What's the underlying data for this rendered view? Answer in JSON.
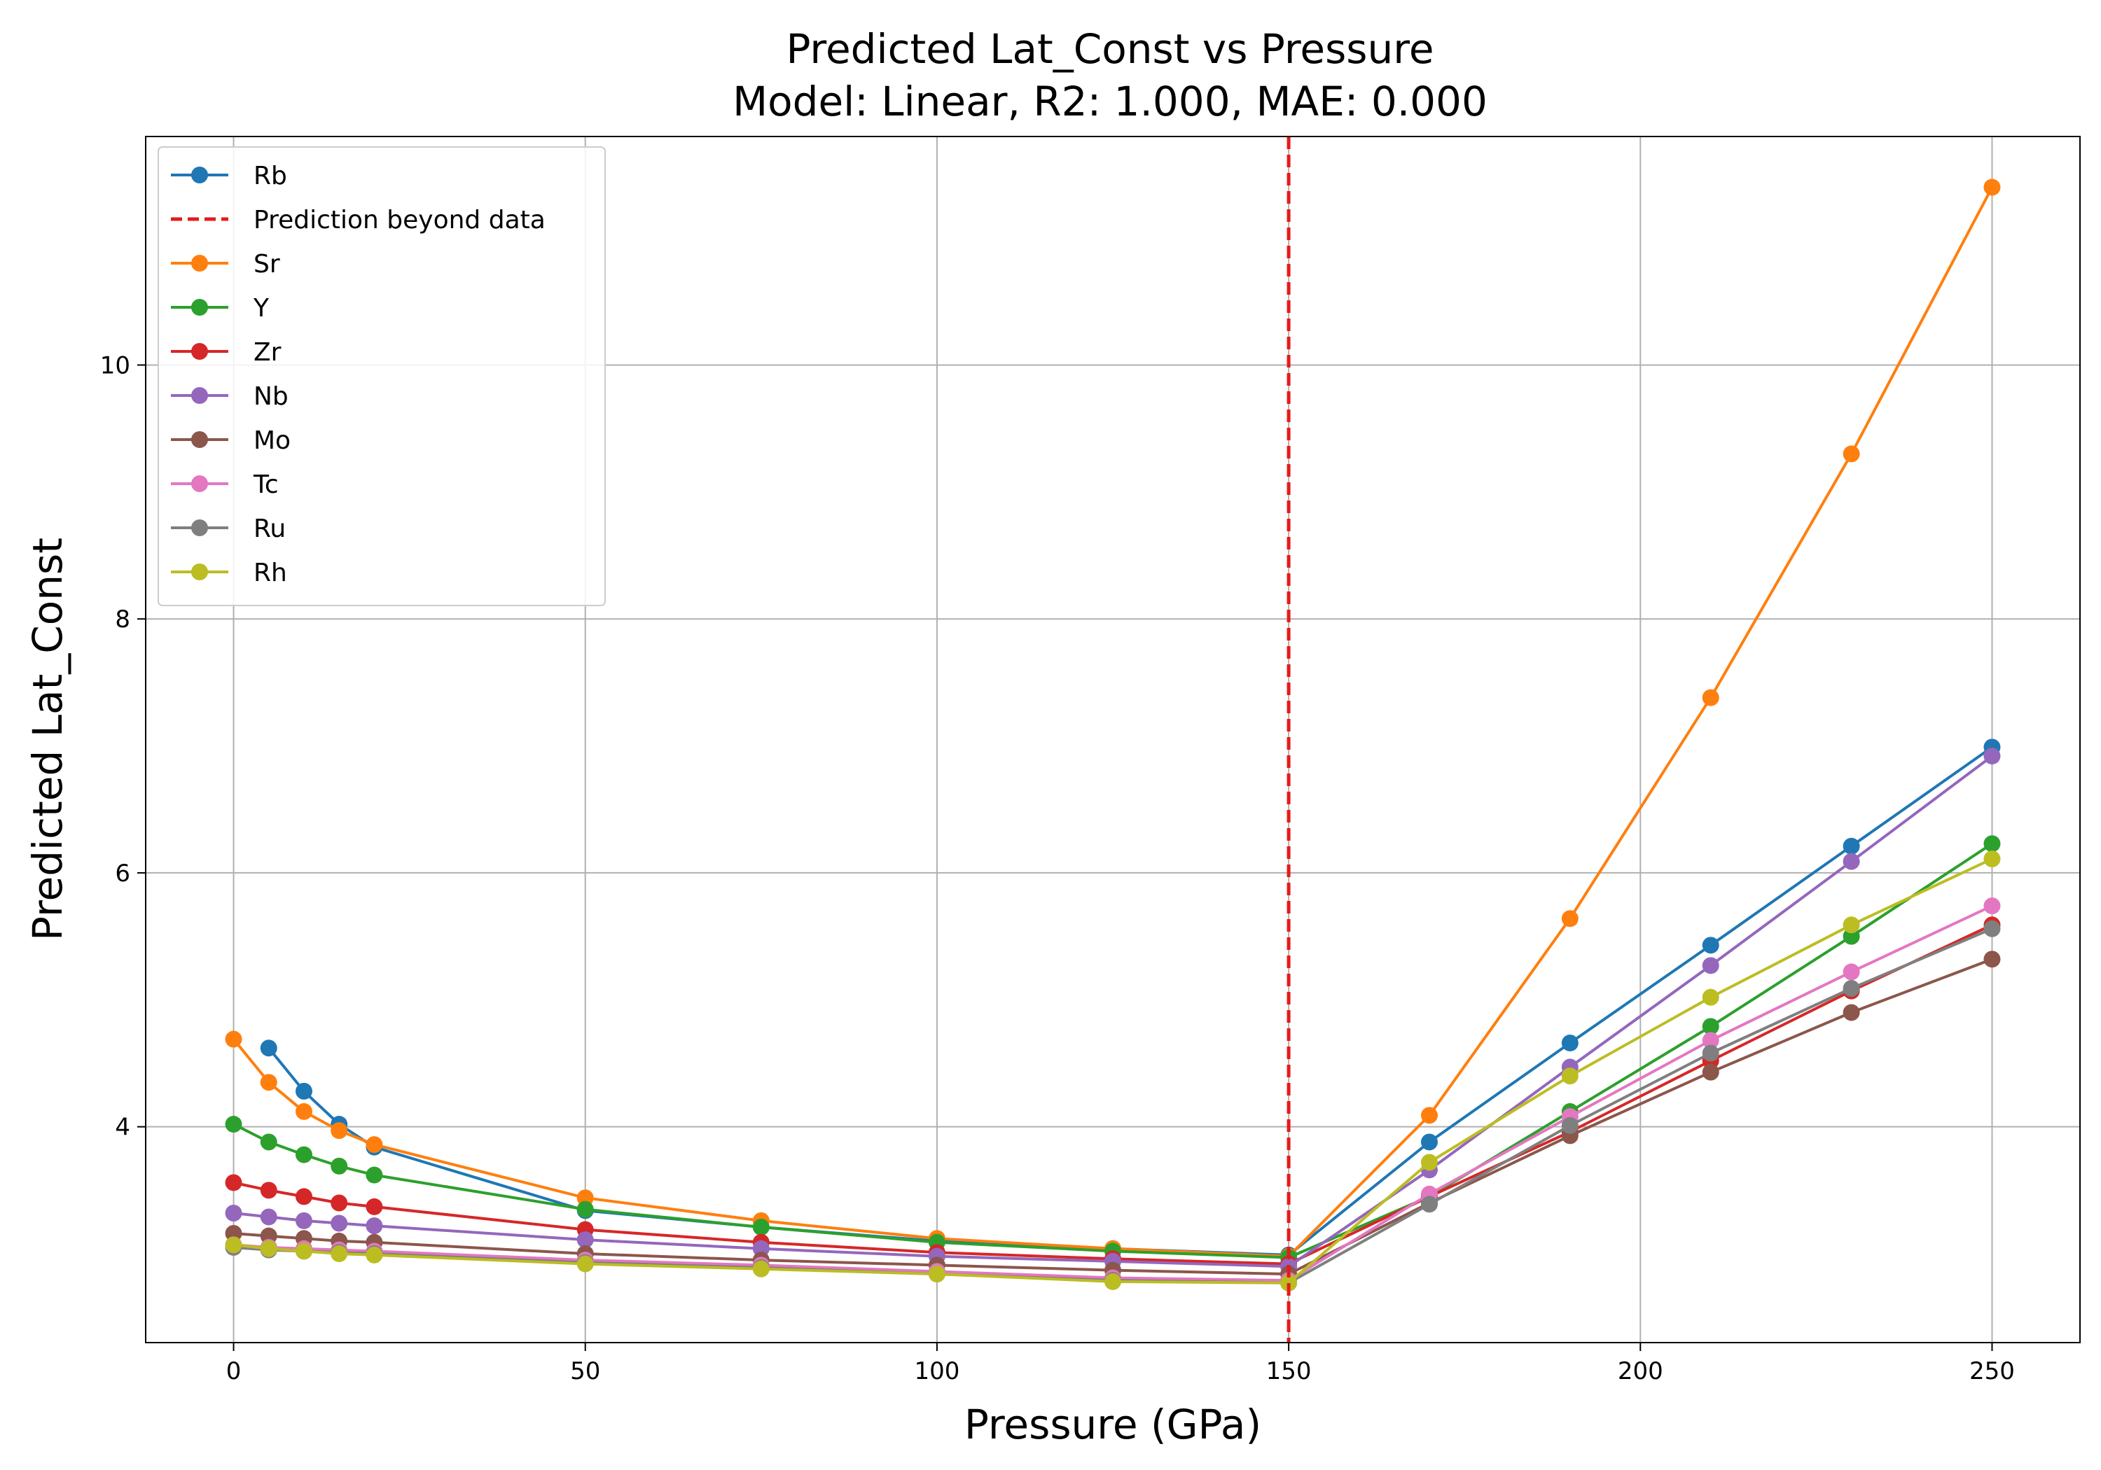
{
  "chart_data": {
    "type": "line",
    "title": "Predicted Lat_Const vs Pressure",
    "subtitle": "Model: Linear, R2: 1.000, MAE: 0.000",
    "xlabel": "Pressure (GPa)",
    "ylabel": "Predicted Lat_Const",
    "xlim": [
      -12.5,
      262.5
    ],
    "ylim": [
      2.3,
      11.8
    ],
    "xticks": [
      0,
      50,
      100,
      150,
      200,
      250
    ],
    "yticks": [
      4,
      6,
      8,
      10
    ],
    "grid": true,
    "legend_position": "top-left",
    "vline": {
      "x": 150,
      "name": "Prediction beyond data",
      "color": "#e41a1c",
      "style": "dashed"
    },
    "legend_order": [
      "Rb",
      "Prediction beyond data",
      "Sr",
      "Y",
      "Zr",
      "Nb",
      "Mo",
      "Tc",
      "Ru",
      "Rh"
    ],
    "series": [
      {
        "name": "Rb",
        "color": "#1f77b4",
        "x": [
          5,
          10,
          15,
          20,
          50,
          75,
          100,
          125,
          150,
          170,
          190,
          210,
          230,
          250
        ],
        "y": [
          4.62,
          4.28,
          4.02,
          3.84,
          3.34,
          3.21,
          3.1,
          3.04,
          2.99,
          3.88,
          4.66,
          5.43,
          6.21,
          6.99
        ]
      },
      {
        "name": "Sr",
        "color": "#ff7f0e",
        "x": [
          0,
          5,
          10,
          15,
          20,
          50,
          75,
          100,
          125,
          150,
          170,
          190,
          210,
          230,
          250
        ],
        "y": [
          4.69,
          4.35,
          4.12,
          3.97,
          3.86,
          3.44,
          3.26,
          3.12,
          3.04,
          2.98,
          4.09,
          5.64,
          7.38,
          9.3,
          11.4
        ]
      },
      {
        "name": "Y",
        "color": "#2ca02c",
        "x": [
          0,
          5,
          10,
          15,
          20,
          50,
          75,
          100,
          125,
          150,
          170,
          190,
          210,
          230,
          250
        ],
        "y": [
          4.02,
          3.88,
          3.78,
          3.69,
          3.62,
          3.35,
          3.21,
          3.09,
          3.02,
          2.97,
          3.45,
          4.12,
          4.79,
          5.5,
          6.23
        ]
      },
      {
        "name": "Zr",
        "color": "#d62728",
        "x": [
          0,
          5,
          10,
          15,
          20,
          50,
          75,
          100,
          125,
          150,
          170,
          190,
          210,
          230,
          250
        ],
        "y": [
          3.56,
          3.5,
          3.45,
          3.4,
          3.37,
          3.19,
          3.09,
          3.01,
          2.96,
          2.92,
          3.45,
          3.96,
          4.52,
          5.07,
          5.59
        ]
      },
      {
        "name": "Nb",
        "color": "#9467bd",
        "x": [
          0,
          5,
          10,
          15,
          20,
          50,
          75,
          100,
          125,
          150,
          170,
          190,
          210,
          230,
          250
        ],
        "y": [
          3.32,
          3.29,
          3.26,
          3.24,
          3.22,
          3.11,
          3.04,
          2.98,
          2.94,
          2.9,
          3.66,
          4.47,
          5.27,
          6.09,
          6.92
        ]
      },
      {
        "name": "Mo",
        "color": "#8c564b",
        "x": [
          0,
          5,
          10,
          15,
          20,
          50,
          75,
          100,
          125,
          150,
          170,
          190,
          210,
          230,
          250
        ],
        "y": [
          3.16,
          3.14,
          3.12,
          3.1,
          3.09,
          3.0,
          2.95,
          2.91,
          2.87,
          2.84,
          3.4,
          3.93,
          4.43,
          4.9,
          5.32
        ]
      },
      {
        "name": "Tc",
        "color": "#e377c2",
        "x": [
          0,
          5,
          10,
          15,
          20,
          50,
          75,
          100,
          125,
          150,
          170,
          190,
          210,
          230,
          250
        ],
        "y": [
          3.07,
          3.05,
          3.04,
          3.03,
          3.02,
          2.95,
          2.91,
          2.86,
          2.81,
          2.79,
          3.47,
          4.08,
          4.68,
          5.22,
          5.74
        ]
      },
      {
        "name": "Ru",
        "color": "#7f7f7f",
        "x": [
          0,
          5,
          10,
          15,
          20,
          50,
          75,
          100,
          125,
          150,
          170,
          190,
          210,
          230,
          250
        ],
        "y": [
          3.05,
          3.03,
          3.02,
          3.01,
          3.0,
          2.93,
          2.89,
          2.84,
          2.79,
          2.77,
          3.39,
          4.01,
          4.58,
          5.09,
          5.56
        ]
      },
      {
        "name": "Rh",
        "color": "#bcbd22",
        "x": [
          0,
          5,
          10,
          15,
          20,
          50,
          75,
          100,
          125,
          150,
          170,
          190,
          210,
          230,
          250
        ],
        "y": [
          3.07,
          3.04,
          3.02,
          3.0,
          2.99,
          2.92,
          2.88,
          2.84,
          2.78,
          2.77,
          3.72,
          4.4,
          5.02,
          5.59,
          6.11
        ]
      }
    ]
  }
}
